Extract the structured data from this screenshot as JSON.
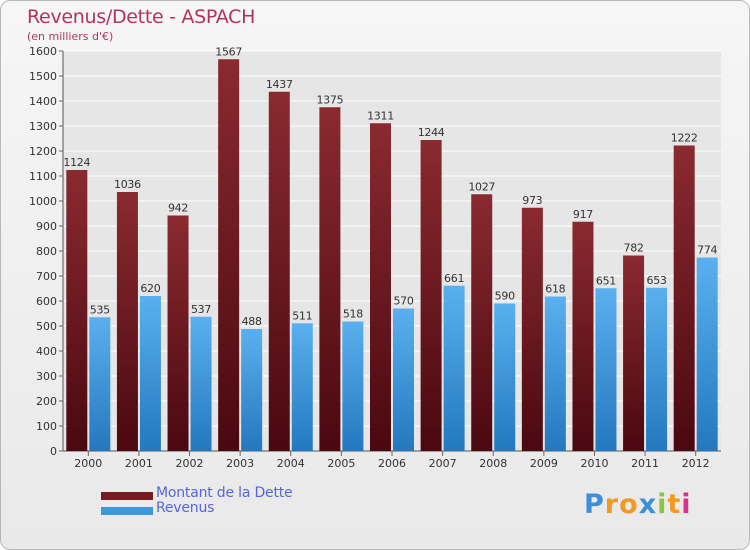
{
  "chart_data": {
    "type": "bar",
    "title": "Revenus/Dette - ASPACH",
    "subtitle": "(en milliers d'€)",
    "xlabel": "",
    "ylabel": "",
    "ylim": [
      0,
      1600
    ],
    "yticks": [
      0,
      100,
      200,
      300,
      400,
      500,
      600,
      700,
      800,
      900,
      1000,
      1100,
      1200,
      1300,
      1400,
      1500,
      1600
    ],
    "grid": true,
    "categories": [
      "2000",
      "2001",
      "2002",
      "2003",
      "2004",
      "2005",
      "2006",
      "2007",
      "2008",
      "2009",
      "2010",
      "2011",
      "2012"
    ],
    "series": [
      {
        "name": "Montant de la Dette",
        "color": "#7a1a22",
        "values": [
          1124,
          1036,
          942,
          1567,
          1437,
          1375,
          1311,
          1244,
          1027,
          973,
          917,
          782,
          1222
        ]
      },
      {
        "name": "Revenus",
        "color": "#3d98dd",
        "values": [
          535,
          620,
          537,
          488,
          511,
          518,
          570,
          661,
          590,
          618,
          651,
          653,
          774
        ]
      }
    ],
    "legend_position": "bottom-left"
  },
  "brand": {
    "letters": [
      "P",
      "r",
      "o",
      "x",
      "i",
      "t",
      "i"
    ],
    "colors": [
      "#3a8fd6",
      "#f29a1f",
      "#f29a1f",
      "#3a8fd6",
      "#8bc53f",
      "#f29a1f",
      "#d8338c"
    ]
  }
}
